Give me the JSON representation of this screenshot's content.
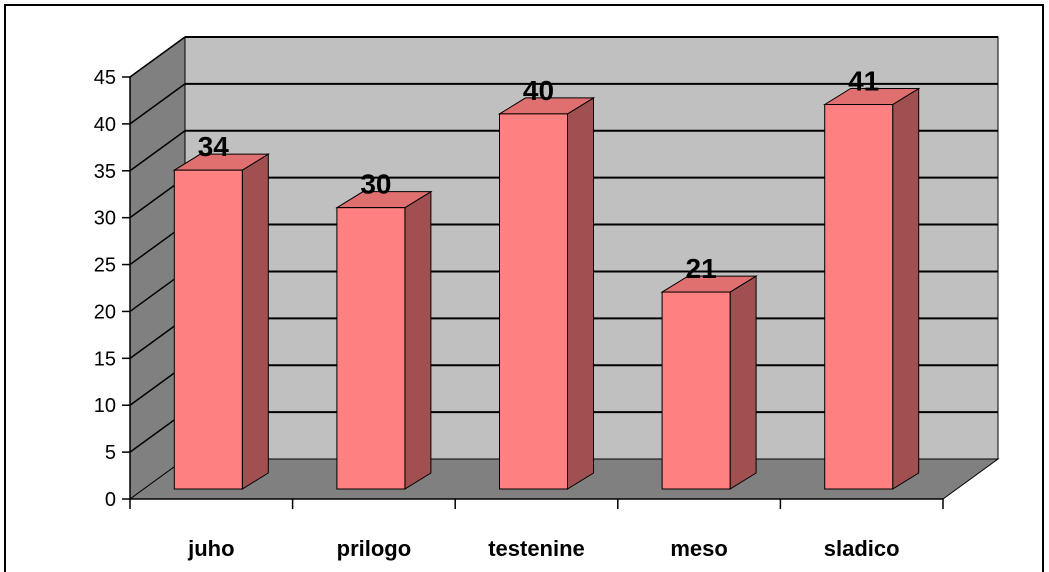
{
  "chart_data": {
    "type": "bar",
    "title": "",
    "xlabel": "",
    "ylabel": "",
    "categories": [
      "juho",
      "prilogo",
      "testenine",
      "meso",
      "sladico"
    ],
    "values": [
      34,
      30,
      40,
      21,
      41
    ],
    "data_labels": [
      "34",
      "30",
      "40",
      "21",
      "41"
    ],
    "ylim": [
      0,
      45
    ],
    "yticks": [
      0,
      5,
      10,
      15,
      20,
      25,
      30,
      35,
      40,
      45
    ],
    "ytick_labels": [
      "0",
      "5",
      "10",
      "15",
      "20",
      "25",
      "30",
      "35",
      "40",
      "45"
    ],
    "grid": true,
    "legend": "none",
    "style": "3d",
    "colors": {
      "bar_front": "#ff8080",
      "bar_side": "#a05050",
      "bar_top": "#e07070",
      "wall": "#c0c0c0",
      "side_wall": "#808080",
      "floor": "#808080"
    }
  }
}
